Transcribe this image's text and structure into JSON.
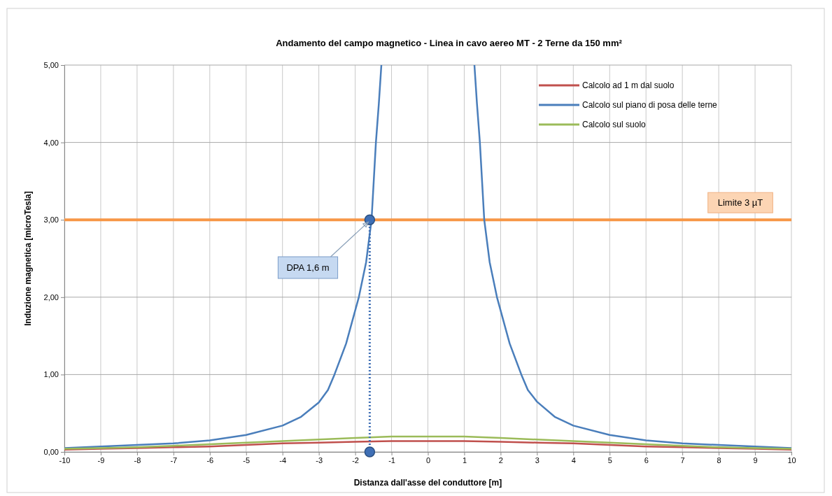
{
  "chart_data": {
    "type": "line",
    "title": "Andamento del campo magnetico - Linea in cavo aereo MT - 2 Terne da 150  mm²",
    "xlabel": "Distanza dall'asse  del conduttore [m]",
    "ylabel": "Induzione magnetica [microTesla]",
    "xlim": [
      -10,
      10
    ],
    "xticks": [
      -10,
      -9,
      -8,
      -7,
      -6,
      -5,
      -4,
      -3,
      -2,
      -1,
      0,
      1,
      2,
      3,
      4,
      5,
      6,
      7,
      8,
      9,
      10
    ],
    "ylim": [
      0,
      5
    ],
    "yticks": [
      {
        "value": 0,
        "label": "0,00"
      },
      {
        "value": 1,
        "label": "1,00"
      },
      {
        "value": 2,
        "label": "2,00"
      },
      {
        "value": 3,
        "label": "3,00"
      },
      {
        "value": 4,
        "label": "4,00"
      },
      {
        "value": 5,
        "label": "5,00"
      }
    ],
    "grid": true,
    "legend": "top right",
    "marker": "none",
    "line_style": "solid",
    "series": [
      {
        "name": "Calcolo ad 1 m dal suolo",
        "color": "#c0504d",
        "x": [
          -10,
          -9,
          -8,
          -7,
          -6,
          -5,
          -4,
          -3,
          -2,
          -1,
          0,
          1,
          2,
          3,
          4,
          5,
          6,
          7,
          8,
          9,
          10
        ],
        "values": [
          0.03,
          0.04,
          0.05,
          0.06,
          0.07,
          0.09,
          0.11,
          0.12,
          0.13,
          0.14,
          0.14,
          0.14,
          0.13,
          0.12,
          0.11,
          0.09,
          0.07,
          0.06,
          0.05,
          0.04,
          0.03
        ]
      },
      {
        "name": "Calcolo sul piano di posa delle terne",
        "color": "#4a7ebb",
        "x": [
          -10,
          -9,
          -8,
          -7,
          -6,
          -5,
          -4,
          -3.5,
          -3,
          -2.75,
          -2.57,
          -2.25,
          -1.9,
          -1.7,
          -1.55,
          -1.43,
          -1.35,
          -1.28,
          0,
          1.28,
          1.35,
          1.43,
          1.55,
          1.7,
          1.9,
          2.25,
          2.57,
          2.75,
          3,
          3.5,
          4,
          5,
          6,
          7,
          8,
          9,
          10
        ],
        "values": [
          0.05,
          0.07,
          0.09,
          0.11,
          0.15,
          0.22,
          0.34,
          0.45,
          0.64,
          0.8,
          1,
          1.4,
          2,
          2.45,
          3,
          4,
          4.5,
          5,
          null,
          5,
          4.5,
          4,
          3,
          2.45,
          2,
          1.4,
          1,
          0.8,
          0.65,
          0.45,
          0.34,
          0.22,
          0.15,
          0.11,
          0.09,
          0.07,
          0.05
        ]
      },
      {
        "name": "Calcolo sul suolo",
        "color": "#9bbb59",
        "x": [
          -10,
          -9,
          -8,
          -7,
          -6,
          -5,
          -4,
          -3,
          -2,
          -1,
          0,
          1,
          2,
          3,
          4,
          5,
          6,
          7,
          8,
          9,
          10
        ],
        "values": [
          0.04,
          0.05,
          0.06,
          0.08,
          0.1,
          0.12,
          0.14,
          0.16,
          0.18,
          0.2,
          0.2,
          0.2,
          0.18,
          0.16,
          0.14,
          0.12,
          0.1,
          0.08,
          0.06,
          0.05,
          0.04
        ]
      },
      {
        "color": "#3f6fb5",
        "x": [
          -1.6,
          -1.6
        ],
        "values": [
          0,
          3
        ],
        "line_style": "dotted",
        "marker": "circle"
      }
    ],
    "ref_lines": [
      {
        "axis": "y",
        "value": 3,
        "label": "Limite 3 µT",
        "color": "#f79646"
      }
    ],
    "annotations": [
      {
        "text": "DPA 1,6 m",
        "x": -1.6,
        "y": 3
      }
    ]
  }
}
